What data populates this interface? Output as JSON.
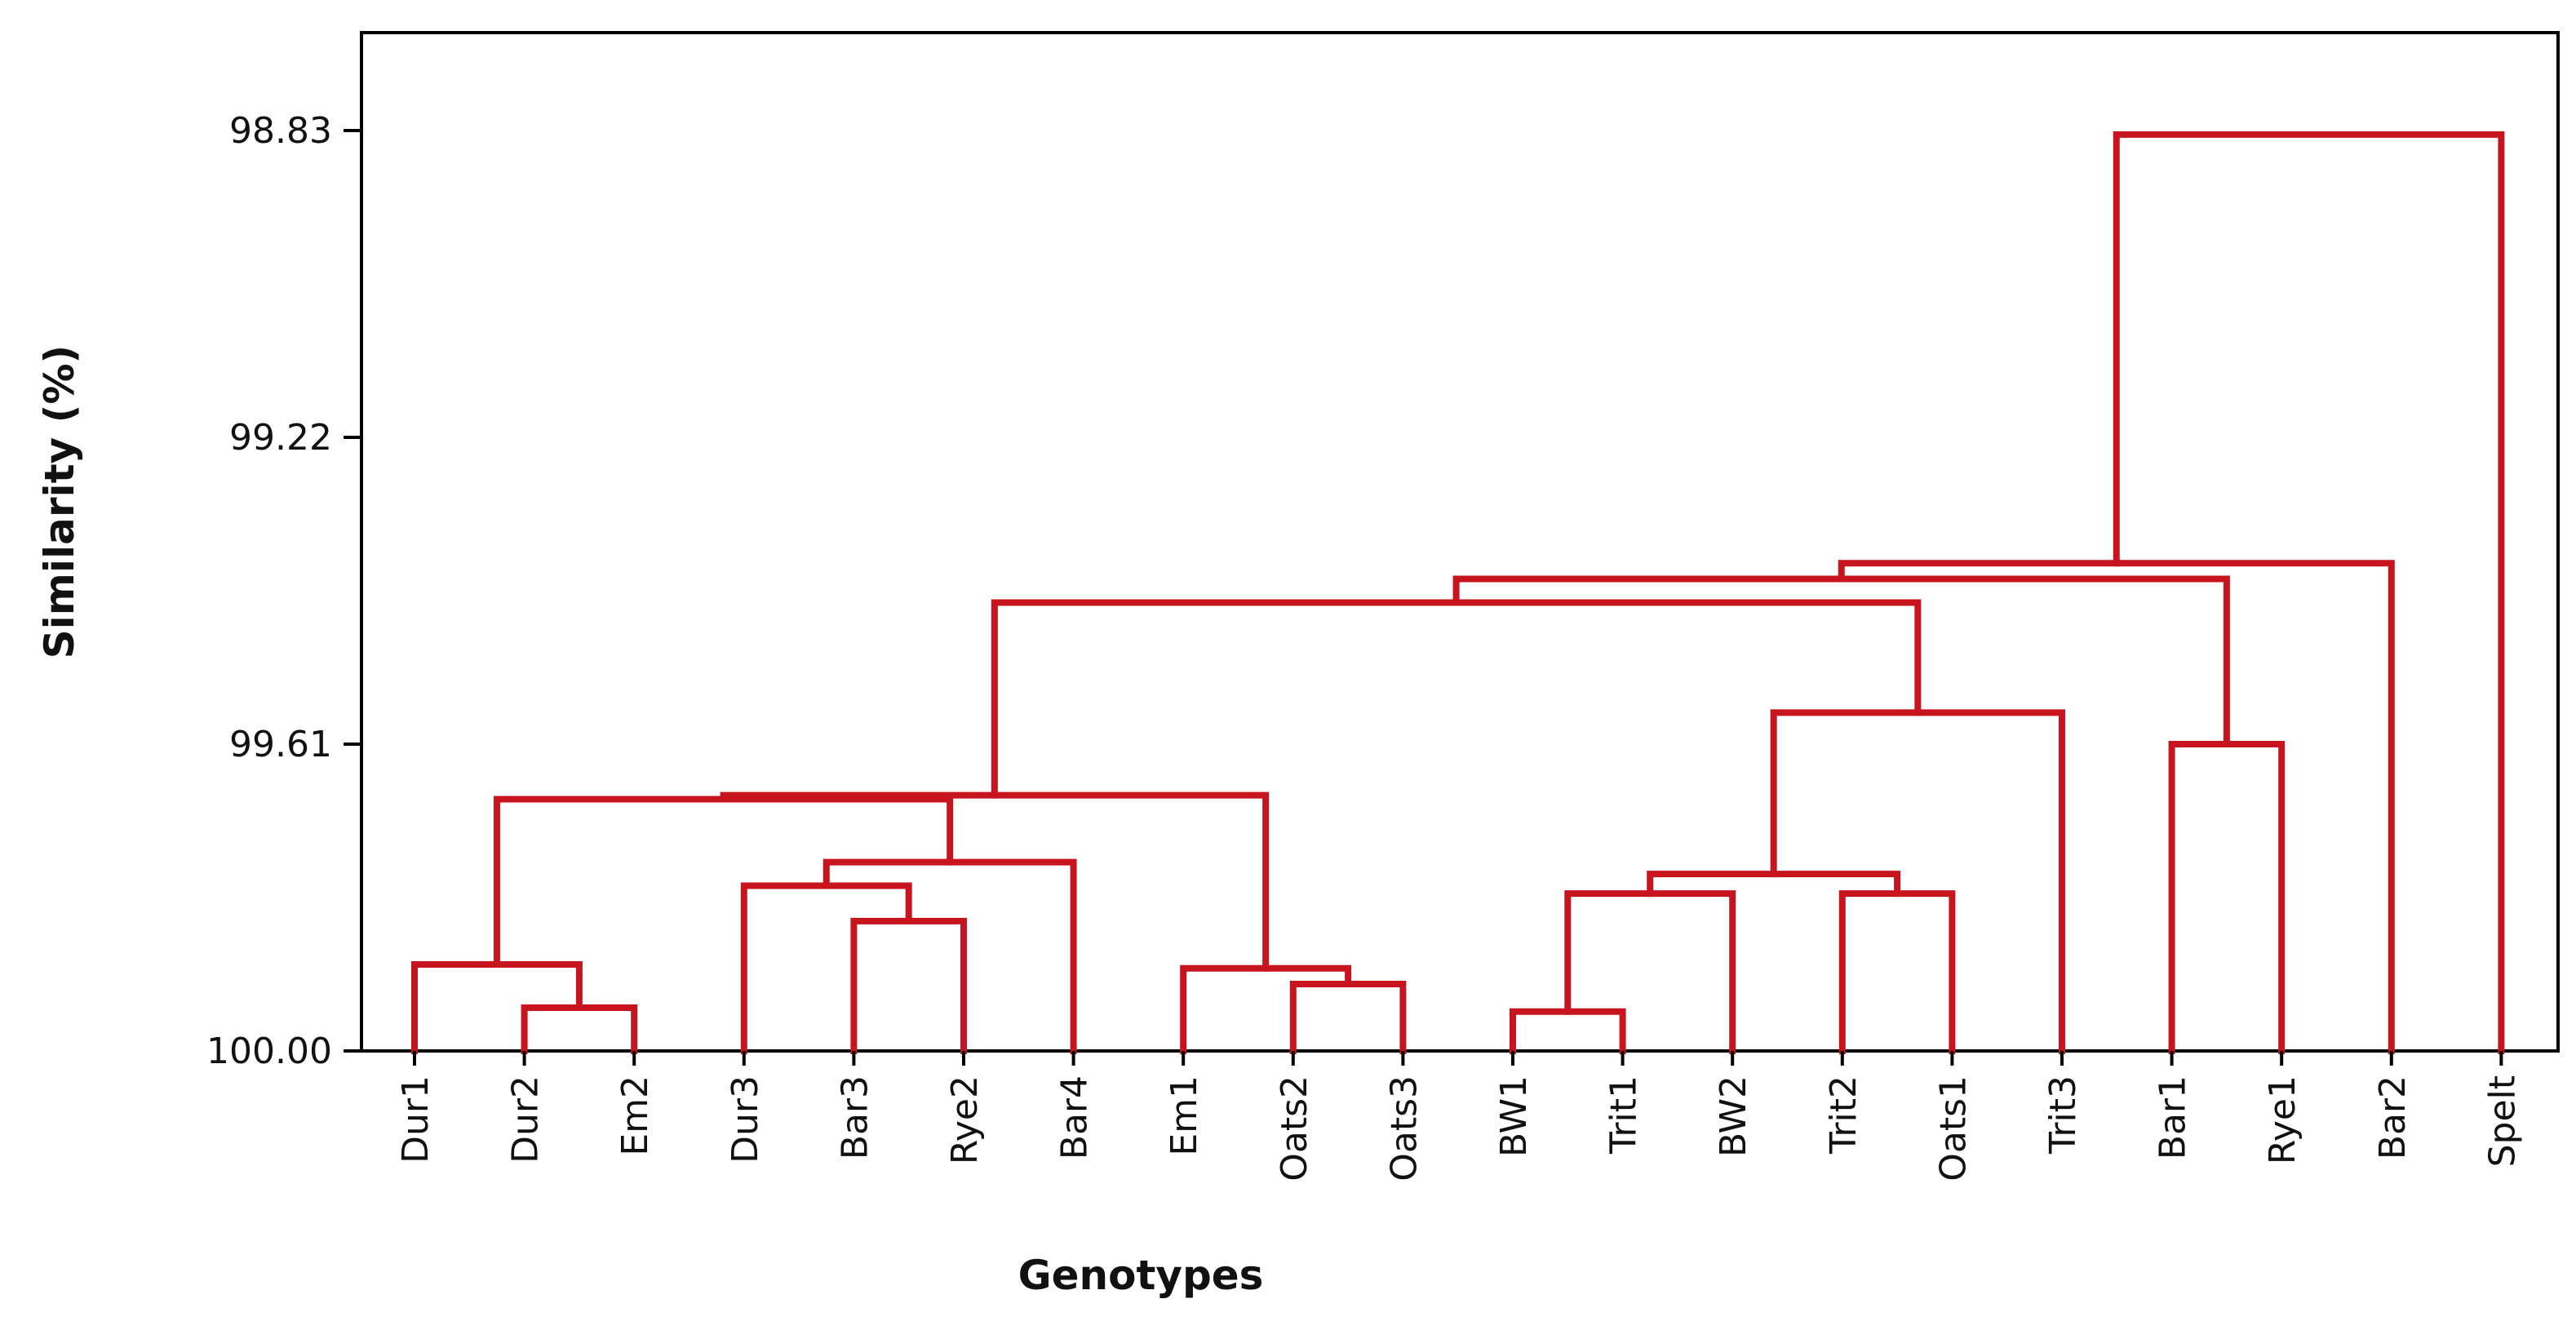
{
  "chart_data": {
    "type": "dendrogram",
    "xlabel": "Genotypes",
    "ylabel": "Similarity (%)",
    "ylim": [
      100.0,
      98.71
    ],
    "y_ticks": [
      "98.83",
      "99.22",
      "99.61",
      "100.00"
    ],
    "y_tick_values": [
      98.83,
      99.22,
      99.61,
      100.0
    ],
    "leaves": [
      "Dur1",
      "Dur2",
      "Em2",
      "Dur3",
      "Bar3",
      "Rye2",
      "Bar4",
      "Em1",
      "Oats2",
      "Oats3",
      "BW1",
      "Trit1",
      "BW2",
      "Trit2",
      "Oats1",
      "Trit3",
      "Bar1",
      "Rye1",
      "Bar2",
      "Spelt"
    ],
    "merges": [
      {
        "id": "m1",
        "left": "Dur2",
        "right": "Em2",
        "similarity": 99.945
      },
      {
        "id": "m2",
        "left": "Dur1",
        "right": "m1",
        "similarity": 99.89
      },
      {
        "id": "m3",
        "left": "Bar3",
        "right": "Rye2",
        "similarity": 99.835
      },
      {
        "id": "m4",
        "left": "Dur3",
        "right": "m3",
        "similarity": 99.79
      },
      {
        "id": "m5",
        "left": "m4",
        "right": "Bar4",
        "similarity": 99.76
      },
      {
        "id": "m6",
        "left": "Oats2",
        "right": "Oats3",
        "similarity": 99.915
      },
      {
        "id": "m7",
        "left": "Em1",
        "right": "m6",
        "similarity": 99.895
      },
      {
        "id": "m8",
        "left": "m2",
        "right": "m5",
        "similarity": 99.68
      },
      {
        "id": "m9",
        "left": "m8",
        "right": "m7",
        "similarity": 99.675
      },
      {
        "id": "m10",
        "left": "BW1",
        "right": "Trit1",
        "similarity": 99.95
      },
      {
        "id": "m11",
        "left": "m10",
        "right": "BW2",
        "similarity": 99.8
      },
      {
        "id": "m12",
        "left": "Trit2",
        "right": "Oats1",
        "similarity": 99.8
      },
      {
        "id": "m13",
        "left": "m11",
        "right": "m12",
        "similarity": 99.775
      },
      {
        "id": "m14",
        "left": "m13",
        "right": "Trit3",
        "similarity": 99.57
      },
      {
        "id": "m15",
        "left": "m9",
        "right": "m14",
        "similarity": 99.43
      },
      {
        "id": "m16",
        "left": "Bar1",
        "right": "Rye1",
        "similarity": 99.61
      },
      {
        "id": "m17",
        "left": "m15",
        "right": "m16",
        "similarity": 99.4
      },
      {
        "id": "m18",
        "left": "m17",
        "right": "Bar2",
        "similarity": 99.38
      },
      {
        "id": "m19",
        "left": "m18",
        "right": "Spelt",
        "similarity": 98.835
      }
    ],
    "line_color": "#c8141e",
    "grid": false,
    "legend": "none"
  }
}
